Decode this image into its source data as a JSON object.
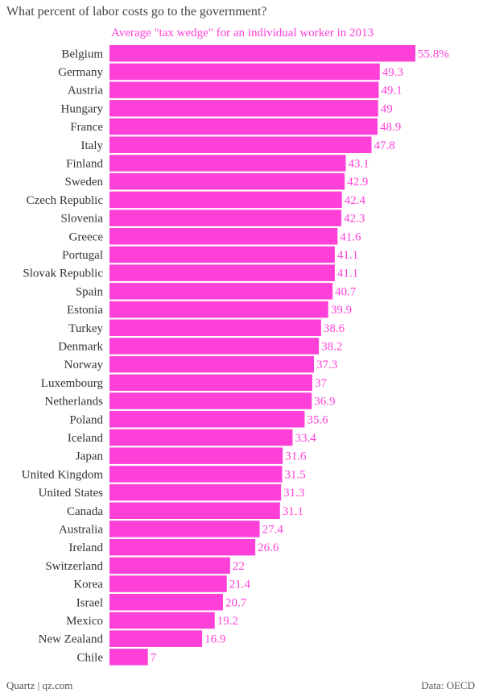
{
  "title": "What percent of labor costs go to the government?",
  "subtitle": "Average \"tax wedge\" for an individual worker in 2013",
  "footer": {
    "left": "Quartz | qz.com",
    "right": "Data: OECD"
  },
  "colors": {
    "bar": "#ff40d8",
    "label": "#ff40d8",
    "category": "#333333"
  },
  "chart_data": {
    "type": "bar",
    "orientation": "horizontal",
    "title": "What percent of labor costs go to the government?",
    "subtitle": "Average \"tax wedge\" for an individual worker in 2013",
    "categories": [
      "Belgium",
      "Germany",
      "Austria",
      "Hungary",
      "France",
      "Italy",
      "Finland",
      "Sweden",
      "Czech Republic",
      "Slovenia",
      "Greece",
      "Portugal",
      "Slovak Republic",
      "Spain",
      "Estonia",
      "Turkey",
      "Denmark",
      "Norway",
      "Luxembourg",
      "Netherlands",
      "Poland",
      "Iceland",
      "Japan",
      "United Kingdom",
      "United States",
      "Canada",
      "Australia",
      "Ireland",
      "Switzerland",
      "Korea",
      "Israel",
      "Mexico",
      "New Zealand",
      "Chile"
    ],
    "values": [
      55.8,
      49.3,
      49.1,
      49,
      48.9,
      47.8,
      43.1,
      42.9,
      42.4,
      42.3,
      41.6,
      41.1,
      41.1,
      40.7,
      39.9,
      38.6,
      38.2,
      37.3,
      37,
      36.9,
      35.6,
      33.4,
      31.6,
      31.5,
      31.3,
      31.1,
      27.4,
      26.6,
      22,
      21.4,
      20.7,
      19.2,
      16.9,
      7
    ],
    "value_labels": [
      "55.8%",
      "49.3",
      "49.1",
      "49",
      "48.9",
      "47.8",
      "43.1",
      "42.9",
      "42.4",
      "42.3",
      "41.6",
      "41.1",
      "41.1",
      "40.7",
      "39.9",
      "38.6",
      "38.2",
      "37.3",
      "37",
      "36.9",
      "35.6",
      "33.4",
      "31.6",
      "31.5",
      "31.3",
      "31.1",
      "27.4",
      "26.6",
      "22",
      "21.4",
      "20.7",
      "19.2",
      "16.9",
      "7"
    ],
    "xlim": [
      0,
      55.8
    ],
    "grid": false,
    "legend": "none"
  }
}
